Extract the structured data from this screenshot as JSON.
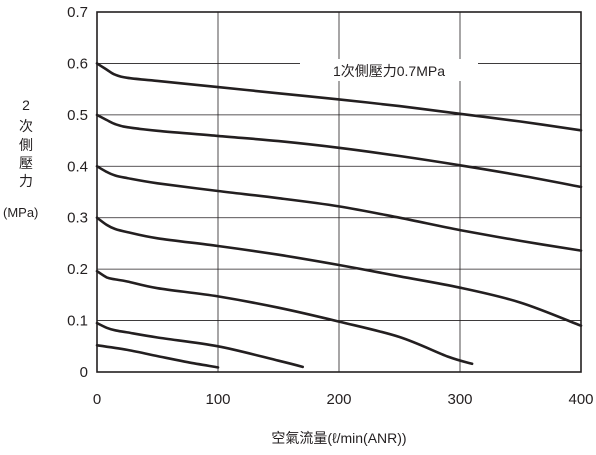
{
  "chart_data": {
    "type": "line",
    "ylabel_chars": [
      "2",
      "次",
      "側",
      "壓",
      "力"
    ],
    "ylabel_unit": "(MPa)",
    "xlabel": "空氣流量(ℓ/min(ANR))",
    "annotation": "1次側壓力0.7MPa",
    "xlim": [
      0,
      400
    ],
    "ylim": [
      0,
      0.7
    ],
    "xticks": [
      "0",
      "100",
      "200",
      "300",
      "400"
    ],
    "yticks": [
      "0",
      "0.1",
      "0.2",
      "0.3",
      "0.4",
      "0.5",
      "0.6",
      "0.7"
    ],
    "grid": true,
    "series": [
      {
        "points": [
          [
            0,
            0.6
          ],
          [
            8,
            0.588
          ],
          [
            15,
            0.578
          ],
          [
            25,
            0.572
          ],
          [
            50,
            0.566
          ],
          [
            100,
            0.554
          ],
          [
            150,
            0.542
          ],
          [
            200,
            0.53
          ],
          [
            250,
            0.517
          ],
          [
            300,
            0.502
          ],
          [
            350,
            0.487
          ],
          [
            400,
            0.47
          ]
        ]
      },
      {
        "points": [
          [
            0,
            0.5
          ],
          [
            8,
            0.49
          ],
          [
            15,
            0.482
          ],
          [
            25,
            0.476
          ],
          [
            50,
            0.469
          ],
          [
            100,
            0.459
          ],
          [
            150,
            0.449
          ],
          [
            200,
            0.436
          ],
          [
            250,
            0.42
          ],
          [
            300,
            0.402
          ],
          [
            350,
            0.382
          ],
          [
            400,
            0.36
          ]
        ]
      },
      {
        "points": [
          [
            0,
            0.4
          ],
          [
            8,
            0.389
          ],
          [
            15,
            0.382
          ],
          [
            25,
            0.377
          ],
          [
            50,
            0.367
          ],
          [
            100,
            0.352
          ],
          [
            150,
            0.338
          ],
          [
            200,
            0.322
          ],
          [
            250,
            0.3
          ],
          [
            300,
            0.276
          ],
          [
            350,
            0.255
          ],
          [
            400,
            0.236
          ]
        ]
      },
      {
        "points": [
          [
            0,
            0.3
          ],
          [
            8,
            0.286
          ],
          [
            15,
            0.278
          ],
          [
            25,
            0.272
          ],
          [
            50,
            0.26
          ],
          [
            100,
            0.245
          ],
          [
            150,
            0.228
          ],
          [
            200,
            0.208
          ],
          [
            250,
            0.186
          ],
          [
            300,
            0.164
          ],
          [
            350,
            0.135
          ],
          [
            400,
            0.09
          ]
        ]
      },
      {
        "points": [
          [
            0,
            0.196
          ],
          [
            8,
            0.184
          ],
          [
            15,
            0.18
          ],
          [
            25,
            0.176
          ],
          [
            50,
            0.163
          ],
          [
            100,
            0.147
          ],
          [
            150,
            0.125
          ],
          [
            200,
            0.098
          ],
          [
            250,
            0.068
          ],
          [
            290,
            0.03
          ],
          [
            310,
            0.016
          ]
        ]
      },
      {
        "points": [
          [
            0,
            0.095
          ],
          [
            8,
            0.086
          ],
          [
            15,
            0.081
          ],
          [
            25,
            0.077
          ],
          [
            50,
            0.067
          ],
          [
            100,
            0.05
          ],
          [
            150,
            0.022
          ],
          [
            170,
            0.01
          ]
        ]
      },
      {
        "points": [
          [
            0,
            0.052
          ],
          [
            25,
            0.043
          ],
          [
            50,
            0.031
          ],
          [
            75,
            0.019
          ],
          [
            100,
            0.009
          ]
        ]
      }
    ]
  }
}
